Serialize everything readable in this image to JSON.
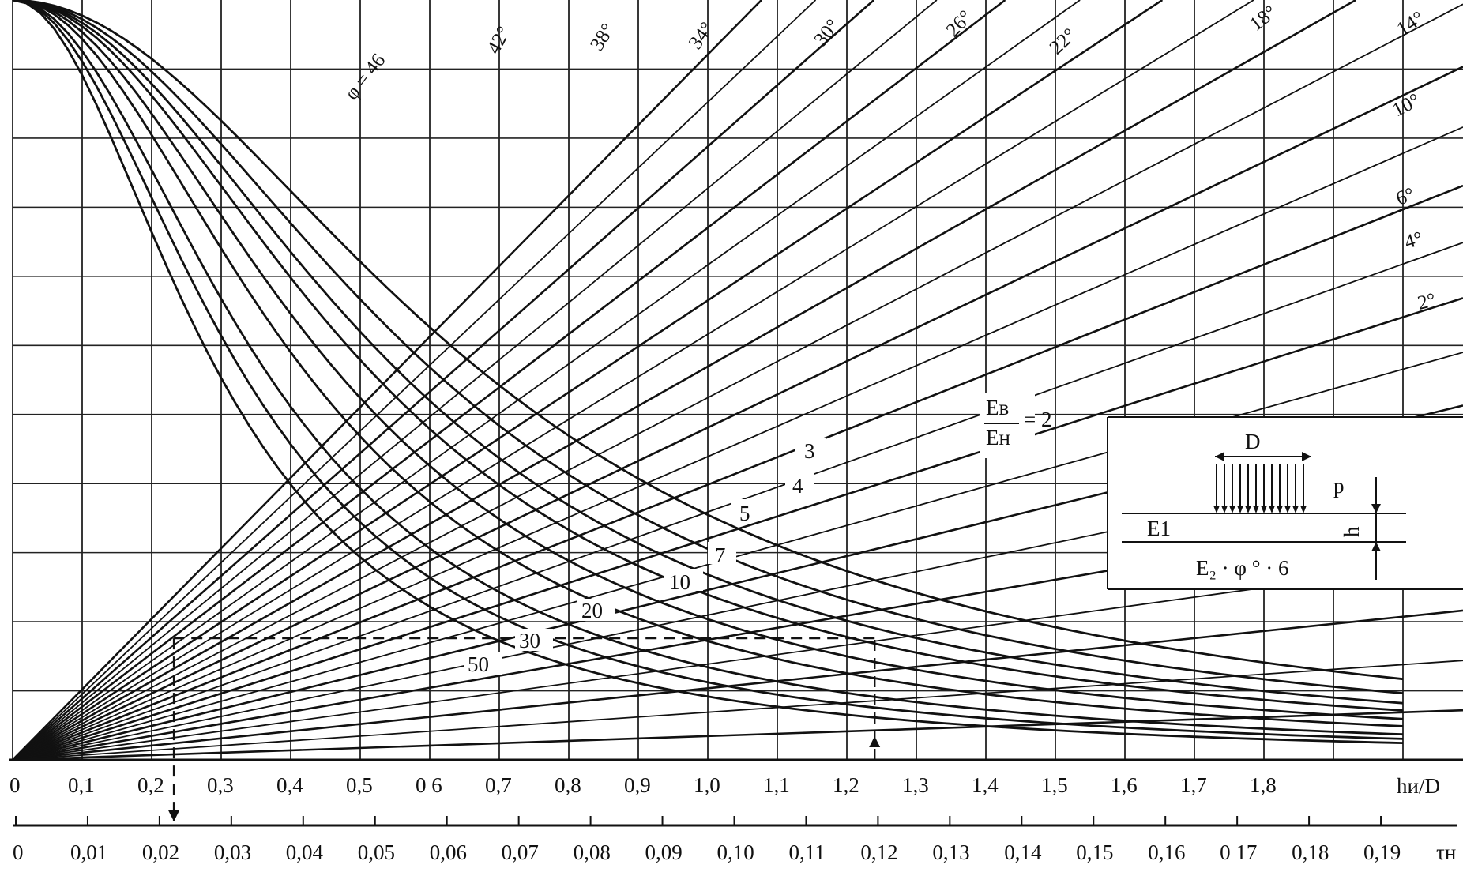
{
  "chart_data": {
    "type": "line",
    "x_axis": {
      "label": "hи/D",
      "range": [
        0,
        2.0
      ],
      "tick_labels": [
        "0",
        "0,1",
        "0,2",
        "0,3",
        "0,4",
        "0,5",
        "0 6",
        "0,7",
        "0,8",
        "0,9",
        "1,0",
        "1,1",
        "1,2",
        "1,3",
        "1,4",
        "1,5",
        "1,6",
        "1,7",
        "1,8"
      ]
    },
    "secondary_x_axis": {
      "label": "τн",
      "range": [
        0,
        0.2
      ],
      "tick_labels": [
        "0",
        "0,01",
        "0,02",
        "0,03",
        "0,04",
        "0,05",
        "0,06",
        "0,07",
        "0,08",
        "0,09",
        "0,10",
        "0,11",
        "0,12",
        "0,13",
        "0,14",
        "0,15",
        "0,16",
        "0 17",
        "0,18",
        "0,19"
      ]
    },
    "y_axis": {
      "range": [
        0,
        1
      ],
      "tick_labels": []
    },
    "grid": true,
    "angle_series": {
      "labels": [
        "φ = 46",
        "42°",
        "38°",
        "34°",
        "30°",
        "26°",
        "22°",
        "18°",
        "14°",
        "10°",
        "6°",
        "4°",
        "2°"
      ],
      "angles_deg": [
        46,
        44,
        42,
        40,
        38,
        36,
        34,
        32,
        30,
        28,
        26,
        24,
        22,
        20,
        18,
        16,
        14,
        12,
        10,
        8,
        6,
        4,
        2
      ]
    },
    "modulus_ratio_series": {
      "ratio_label_top": "Eв",
      "ratio_label_bottom": "Eн",
      "ratio_equals": "= 2",
      "values": [
        "2",
        "3",
        "4",
        "5",
        "7",
        "10",
        "20",
        "30",
        "50"
      ]
    },
    "example_path": {
      "tau": 0.022,
      "h_over_D": 1.24,
      "value_level": 0.16
    }
  },
  "inset": {
    "diameter_label": "D",
    "load_label": "p",
    "layer1_label": "E1",
    "layer2_label": "E₂ · φ ° · 6",
    "thickness_label": "h"
  }
}
